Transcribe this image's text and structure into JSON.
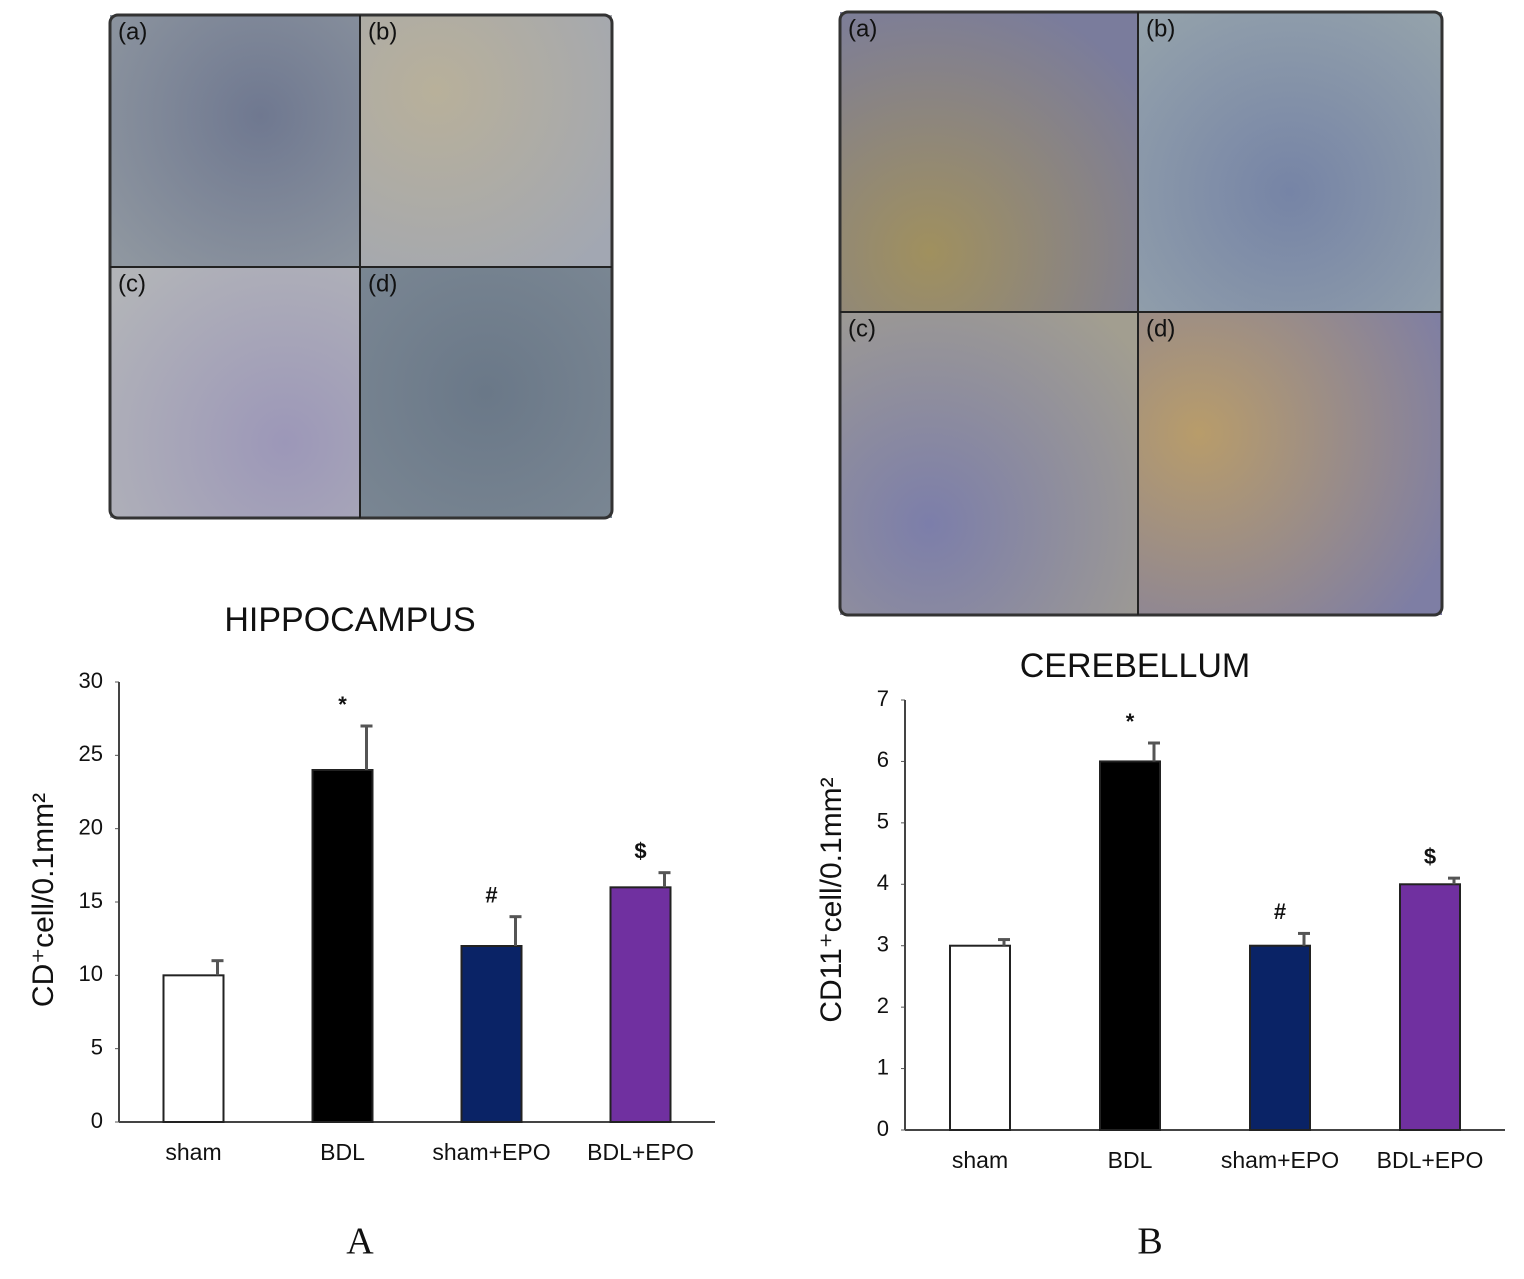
{
  "chart_data": [
    {
      "type": "bar",
      "title": "HIPPOCAMPUS",
      "panel_label": "A",
      "y_label": "CD⁺cell/0.1mm²",
      "image_labels": [
        "(a)",
        "(b)",
        "(c)",
        "(d)"
      ],
      "categories": [
        "sham",
        "BDL",
        "sham+EPO",
        "BDL+EPO"
      ],
      "values": [
        10,
        24,
        12,
        16
      ],
      "errors": [
        1,
        3,
        2,
        1
      ],
      "annotations": [
        null,
        "*",
        "#",
        "$"
      ],
      "colors": [
        "#ffffff",
        "#000000",
        "#0a2366",
        "#7030a0"
      ],
      "ylim": [
        0,
        30
      ],
      "yticks": [
        0,
        5,
        10,
        15,
        20,
        25,
        30
      ],
      "grid": false
    },
    {
      "type": "bar",
      "title": "CEREBELLUM",
      "panel_label": "B",
      "y_label": "CD11⁺cell/0.1mm²",
      "image_labels": [
        "(a)",
        "(b)",
        "(c)",
        "(d)"
      ],
      "categories": [
        "sham",
        "BDL",
        "sham+EPO",
        "BDL+EPO"
      ],
      "values": [
        3,
        6,
        3,
        4
      ],
      "errors": [
        0.1,
        0.3,
        0.2,
        0.1
      ],
      "annotations": [
        null,
        "*",
        "#",
        "$"
      ],
      "colors": [
        "#ffffff",
        "#000000",
        "#0a2366",
        "#7030a0"
      ],
      "ylim": [
        0,
        7
      ],
      "yticks": [
        0,
        1,
        2,
        3,
        4,
        5,
        6,
        7
      ],
      "grid": false
    }
  ]
}
